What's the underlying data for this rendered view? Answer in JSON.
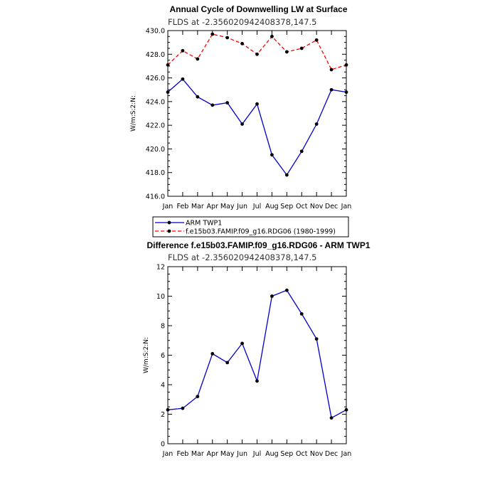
{
  "chart_data": [
    {
      "type": "line",
      "title": "Annual Cycle of Downwelling LW at Surface",
      "subtitle": "FLDS at -2.356020942408378,147.5",
      "ylabel": "W/m:S:2:N:",
      "categories": [
        "Jan",
        "Feb",
        "Mar",
        "Apr",
        "May",
        "Jun",
        "Jul",
        "Aug",
        "Sep",
        "Oct",
        "Nov",
        "Dec",
        "Jan"
      ],
      "ylim": [
        416.0,
        430.0
      ],
      "yticks": [
        "416.0",
        "418.0",
        "420.0",
        "422.0",
        "424.0",
        "426.0",
        "428.0",
        "430.0"
      ],
      "series": [
        {
          "name": "ARM TWP1",
          "color": "#0000cc",
          "dash": "solid",
          "values": [
            424.8,
            425.9,
            424.4,
            423.7,
            423.9,
            422.1,
            423.8,
            419.5,
            417.8,
            419.8,
            422.1,
            425.0,
            424.8
          ]
        },
        {
          "name": "f.e15b03.FAMIP.f09_g16.RDG06 (1980-1999)",
          "color": "#ff0000",
          "dash": "dashed",
          "values": [
            427.1,
            428.3,
            427.6,
            429.7,
            429.4,
            428.9,
            428.0,
            429.5,
            428.2,
            428.5,
            429.2,
            426.7,
            427.1
          ]
        }
      ],
      "legend": "below"
    },
    {
      "type": "line",
      "title": "Difference f.e15b03.FAMIP.f09_g16.RDG06 - ARM TWP1",
      "subtitle": "FLDS at -2.356020942408378,147.5",
      "ylabel": "W/m:S:2:N:",
      "categories": [
        "Jan",
        "Feb",
        "Mar",
        "Apr",
        "May",
        "Jun",
        "Jul",
        "Aug",
        "Sep",
        "Oct",
        "Nov",
        "Dec",
        "Jan"
      ],
      "ylim": [
        0,
        12
      ],
      "yticks": [
        "0",
        "2",
        "4",
        "6",
        "8",
        "10",
        "12"
      ],
      "series": [
        {
          "name": "",
          "color": "#0000cc",
          "dash": "solid",
          "values": [
            2.3,
            2.4,
            3.2,
            6.1,
            5.5,
            6.8,
            4.25,
            10.0,
            10.4,
            8.8,
            7.1,
            1.75,
            2.3
          ]
        }
      ]
    }
  ]
}
